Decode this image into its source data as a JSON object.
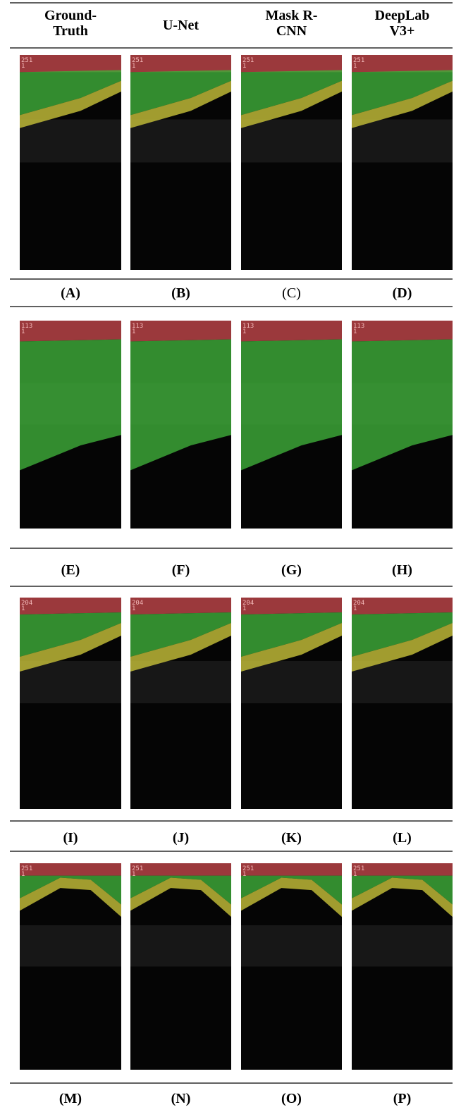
{
  "columns": [
    {
      "lines": [
        "Ground-",
        "Truth"
      ]
    },
    {
      "lines": [
        "U-Net"
      ]
    },
    {
      "lines": [
        "Mask R-",
        "CNN"
      ]
    },
    {
      "lines": [
        "DeepLab",
        "V3+"
      ]
    }
  ],
  "rows": [
    {
      "panels": [
        {
          "overlay": [
            "251",
            "1"
          ],
          "label": "(A)"
        },
        {
          "overlay": [
            "251",
            "1"
          ],
          "label": "(B)"
        },
        {
          "overlay": [
            "251",
            "1"
          ],
          "label": "(C)"
        },
        {
          "overlay": [
            "251",
            "1"
          ],
          "label": "(D)"
        }
      ]
    },
    {
      "panels": [
        {
          "overlay": [
            "113",
            "1"
          ],
          "label": "(E)"
        },
        {
          "overlay": [
            "113",
            "1"
          ],
          "label": "(F)"
        },
        {
          "overlay": [
            "113",
            "1"
          ],
          "label": "(G)"
        },
        {
          "overlay": [
            "113",
            "1"
          ],
          "label": "(H)"
        }
      ]
    },
    {
      "panels": [
        {
          "overlay": [
            "204",
            "1"
          ],
          "label": "(I)"
        },
        {
          "overlay": [
            "204",
            "1"
          ],
          "label": "(J)"
        },
        {
          "overlay": [
            "204",
            "1"
          ],
          "label": "(K)"
        },
        {
          "overlay": [
            "204",
            "1"
          ],
          "label": "(L)"
        }
      ]
    },
    {
      "panels": [
        {
          "overlay": [
            "251",
            "1"
          ],
          "label": "(M)"
        },
        {
          "overlay": [
            "251",
            "1"
          ],
          "label": "(N)"
        },
        {
          "overlay": [
            "251",
            "1"
          ],
          "label": "(O)"
        },
        {
          "overlay": [
            "251",
            "1"
          ],
          "label": "(P)"
        }
      ]
    }
  ]
}
